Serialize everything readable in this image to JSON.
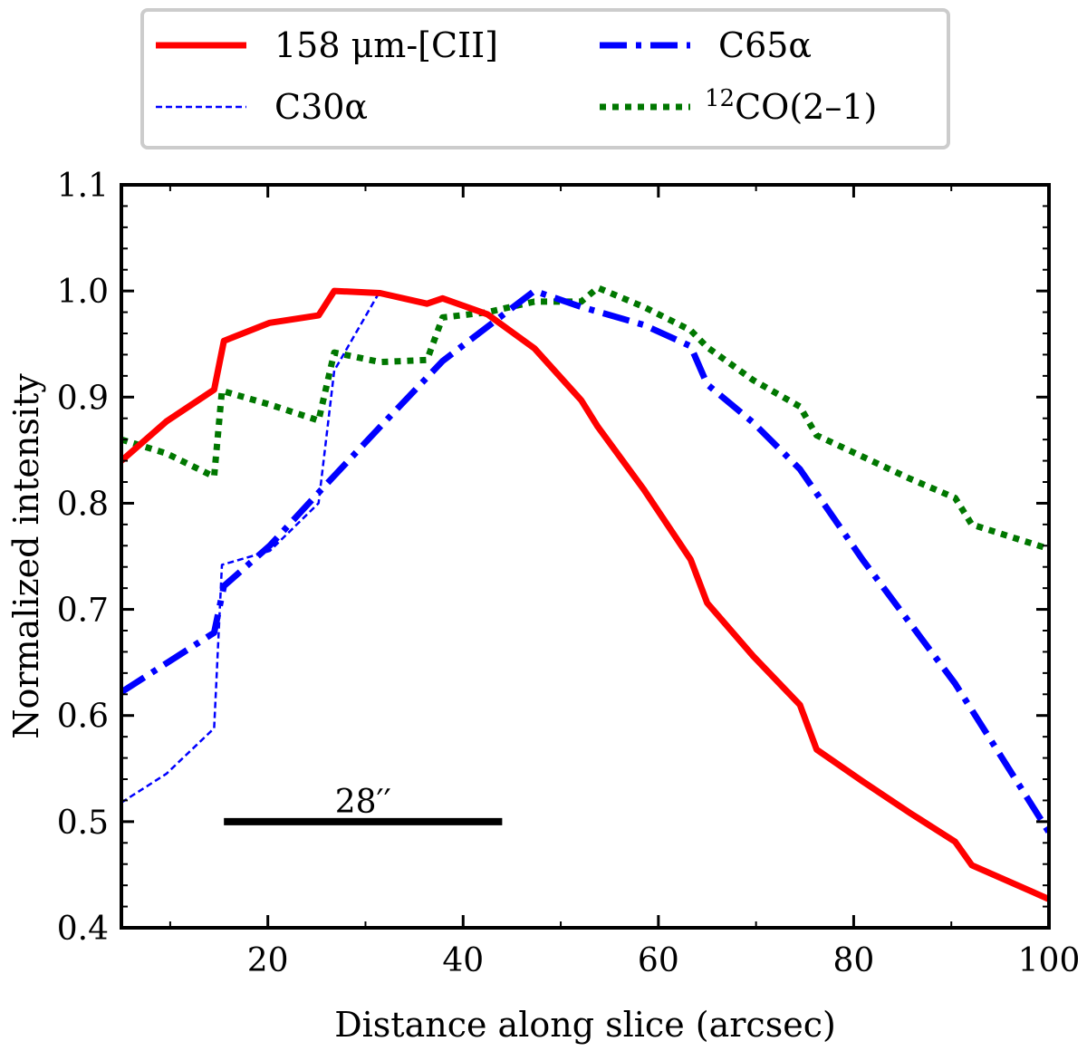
{
  "chart_data": {
    "type": "line",
    "title": "",
    "xlabel": "Distance along slice (arcsec)",
    "ylabel": "Normalized intensity",
    "xlim": [
      5,
      100
    ],
    "ylim": [
      0.4,
      1.1
    ],
    "xticks": [
      20,
      40,
      60,
      80,
      100
    ],
    "xtick_labels": [
      "20",
      "40",
      "60",
      "80",
      "100"
    ],
    "yticks": [
      0.4,
      0.5,
      0.6,
      0.7,
      0.8,
      0.9,
      1.0,
      1.1
    ],
    "ytick_labels": [
      "0.4",
      "0.5",
      "0.6",
      "0.7",
      "0.8",
      "0.9",
      "1.0",
      "1.1"
    ],
    "grid": false,
    "legend_position": "top, outside plot",
    "series": [
      {
        "name": "158 μm-[CII]",
        "legend_label": "158 μm-[CII]",
        "color": "#ff0000",
        "style": "solid",
        "x": [
          5,
          9.6,
          14.5,
          15.5,
          20.2,
          25.2,
          26.8,
          31.5,
          36.3,
          37.9,
          42.5,
          47.3,
          52.1,
          53.8,
          58.5,
          63.3,
          65,
          69.7,
          74.5,
          76.2,
          80.9,
          85.8,
          90.4,
          92.1,
          100
        ],
        "y": [
          0.84,
          0.877,
          0.907,
          0.953,
          0.97,
          0.977,
          1.0,
          0.998,
          0.988,
          0.993,
          0.978,
          0.946,
          0.897,
          0.872,
          0.813,
          0.747,
          0.706,
          0.656,
          0.61,
          0.568,
          0.538,
          0.508,
          0.481,
          0.459,
          0.427
        ]
      },
      {
        "name": "C65α",
        "legend_label": "C65α",
        "color": "#0000ff",
        "style": "dashdot",
        "x": [
          5,
          14.5,
          15.5,
          20.2,
          25.2,
          31.5,
          37.9,
          47.3,
          52.1,
          58.5,
          63.3,
          65,
          69.7,
          74.5,
          80.9,
          90.4,
          100
        ],
        "y": [
          0.622,
          0.678,
          0.722,
          0.76,
          0.81,
          0.872,
          0.934,
          1.0,
          0.985,
          0.968,
          0.948,
          0.912,
          0.876,
          0.832,
          0.747,
          0.63,
          0.49
        ]
      },
      {
        "name": "C30α",
        "legend_label": "C30α",
        "color": "#0000ff",
        "style": "dashed",
        "x": [
          5,
          9.6,
          14.5,
          15.3,
          20.2,
          25.2,
          26.8,
          31.5
        ],
        "y": [
          0.518,
          0.545,
          0.588,
          0.742,
          0.755,
          0.8,
          0.925,
          1.0
        ]
      },
      {
        "name": "12CO(2–1)",
        "legend_label": "12CO(2–1)",
        "legend_label_super": "12",
        "legend_label_main": "CO(2–1)",
        "color": "#007700",
        "style": "dotted",
        "x": [
          5,
          9.6,
          14.5,
          15.3,
          20.2,
          25.2,
          26.8,
          31.5,
          36.3,
          37.9,
          42.5,
          47.3,
          52.1,
          53.8,
          58.5,
          63.3,
          65,
          69.7,
          74.5,
          76.2,
          80.9,
          85.8,
          90.4,
          92.1,
          100
        ],
        "y": [
          0.86,
          0.847,
          0.825,
          0.906,
          0.893,
          0.878,
          0.942,
          0.933,
          0.935,
          0.975,
          0.98,
          0.99,
          0.99,
          1.003,
          0.985,
          0.963,
          0.947,
          0.916,
          0.891,
          0.864,
          0.844,
          0.823,
          0.805,
          0.78,
          0.757
        ]
      }
    ],
    "annotations": [
      {
        "type": "scale_bar",
        "label": "28′′",
        "x_start": 15.5,
        "x_end": 44,
        "y": 0.5
      }
    ]
  }
}
